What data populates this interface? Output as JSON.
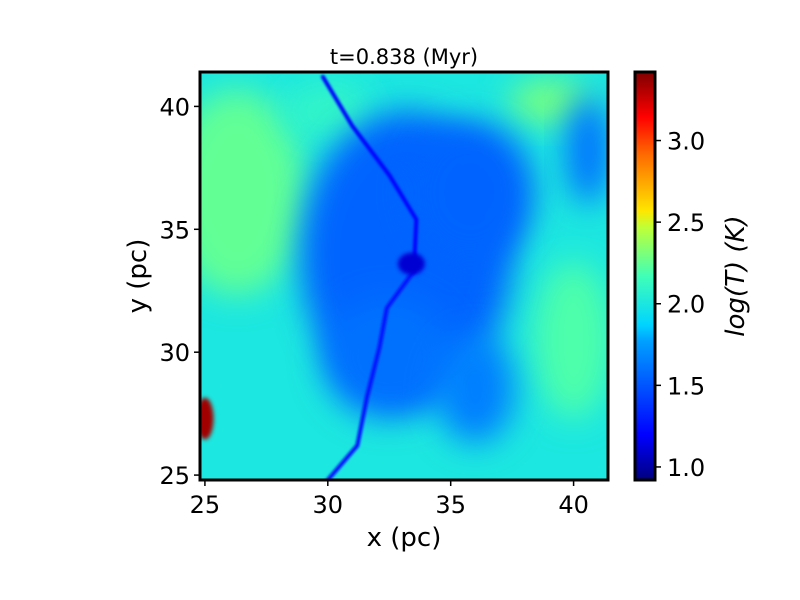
{
  "chart_data": {
    "type": "heatmap",
    "title": "t=0.838 (Myr)",
    "xlabel": "x (pc)",
    "ylabel": "y (pc)",
    "xlim": [
      24.8,
      41.4
    ],
    "ylim": [
      24.8,
      41.4
    ],
    "xticks": [
      25,
      30,
      35,
      40
    ],
    "yticks": [
      25,
      30,
      35,
      40
    ],
    "xtick_labels": [
      "25",
      "30",
      "35",
      "40"
    ],
    "ytick_labels": [
      "25",
      "30",
      "35",
      "40"
    ],
    "colormap": "jet",
    "colorbar": {
      "label": "log(T) (K)",
      "range": [
        0.92,
        3.42
      ],
      "ticks": [
        1.0,
        1.5,
        2.0,
        2.5,
        3.0
      ],
      "tick_labels": [
        "1.0",
        "1.5",
        "2.0",
        "2.5",
        "3.0"
      ]
    },
    "background_level": 2.0,
    "features": [
      {
        "kind": "warm-region",
        "x": 26.3,
        "y": 36.5,
        "rx": 2.8,
        "ry": 4.2,
        "value": 2.25
      },
      {
        "kind": "warm-region",
        "x": 40.0,
        "y": 30.5,
        "rx": 1.6,
        "ry": 3.2,
        "value": 2.2
      },
      {
        "kind": "warm-region",
        "x": 39.0,
        "y": 40.2,
        "rx": 1.6,
        "ry": 0.9,
        "value": 2.3
      },
      {
        "kind": "warm-region",
        "x": 30.0,
        "y": 39.8,
        "rx": 1.8,
        "ry": 1.2,
        "value": 2.1
      },
      {
        "kind": "cold-region",
        "x": 33.2,
        "y": 34.0,
        "rx": 4.3,
        "ry": 5.8,
        "value": 1.55
      },
      {
        "kind": "cold-region",
        "x": 35.8,
        "y": 36.5,
        "rx": 2.6,
        "ry": 2.9,
        "value": 1.55
      },
      {
        "kind": "cold-region",
        "x": 32.5,
        "y": 29.8,
        "rx": 2.7,
        "ry": 2.5,
        "value": 1.6
      },
      {
        "kind": "cold-region",
        "x": 40.6,
        "y": 38.2,
        "rx": 0.9,
        "ry": 2.2,
        "value": 1.6
      },
      {
        "kind": "cold-region",
        "x": 36.0,
        "y": 28.5,
        "rx": 1.6,
        "ry": 2.2,
        "value": 1.65
      },
      {
        "kind": "cold-filament",
        "points": [
          [
            29.8,
            41.2
          ],
          [
            31.0,
            39.2
          ],
          [
            32.5,
            37.2
          ],
          [
            33.6,
            35.4
          ],
          [
            33.5,
            33.3
          ]
        ],
        "value": 1.2
      },
      {
        "kind": "cold-filament",
        "points": [
          [
            33.5,
            33.3
          ],
          [
            32.4,
            31.8
          ],
          [
            32.1,
            30.2
          ],
          [
            31.6,
            28.2
          ],
          [
            31.2,
            26.2
          ],
          [
            30.0,
            24.8
          ]
        ],
        "value": 1.25
      },
      {
        "kind": "cold-core",
        "x": 33.4,
        "y": 33.6,
        "rx": 0.55,
        "ry": 0.45,
        "value": 1.1
      },
      {
        "kind": "hot-spot",
        "x": 25.0,
        "y": 27.3,
        "rx": 0.35,
        "ry": 0.85,
        "value": 3.35
      }
    ]
  }
}
